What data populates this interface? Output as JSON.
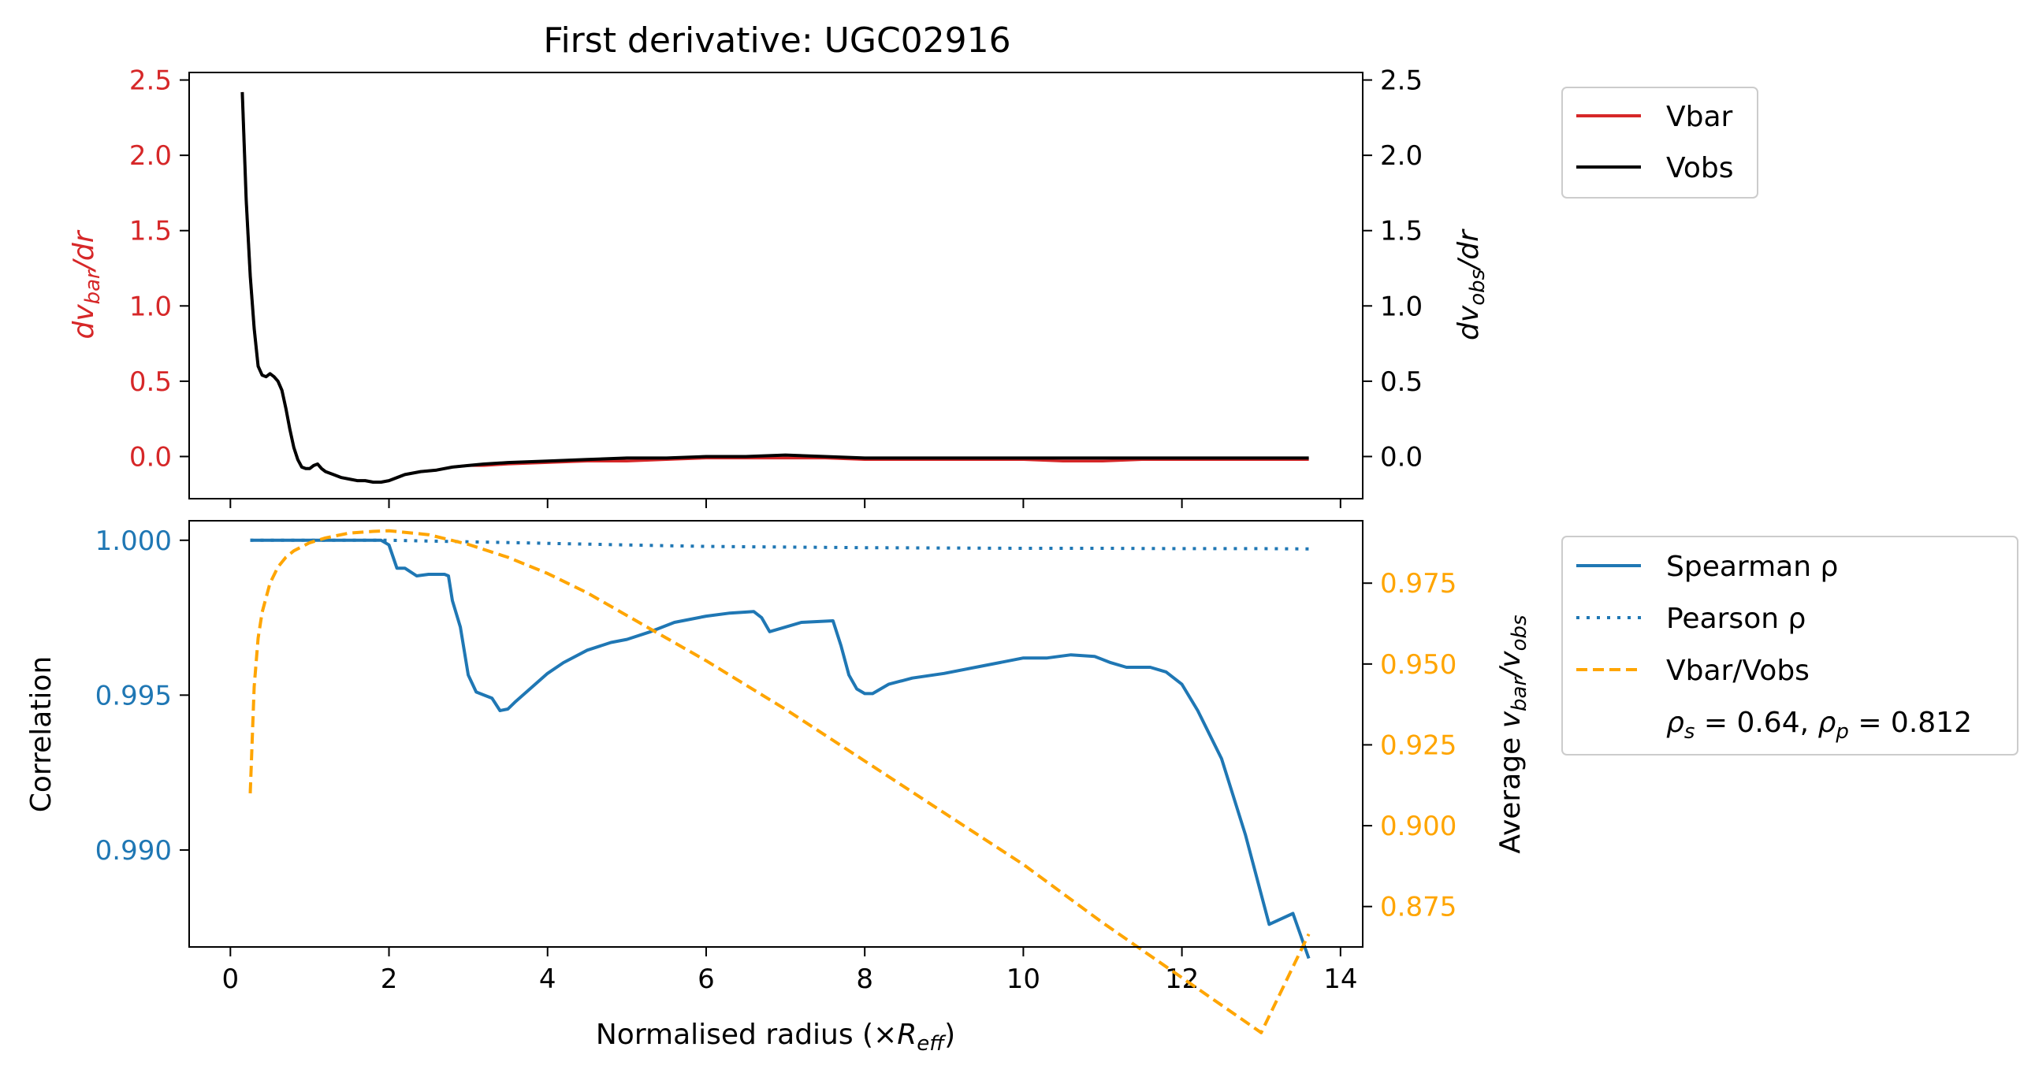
{
  "colors": {
    "vbar": "#d62728",
    "vobs": "#000000",
    "spearman": "#1f77b4",
    "pearson": "#1f77b4",
    "ratio": "#ffa500"
  },
  "chart_data": [
    {
      "type": "line",
      "title": "First derivative: UGC02916",
      "ylabel_left": "dv_bar/dr",
      "ylabel_right": "dv_obs/dr",
      "ylim": [
        -0.28,
        2.55
      ],
      "yticks": [
        0.0,
        0.5,
        1.0,
        1.5,
        2.0,
        2.5
      ],
      "xlim": [
        -0.52,
        14.28
      ],
      "legend": [
        "Vbar",
        "Vobs"
      ],
      "legend_position": "outside right, top",
      "series": [
        {
          "name": "Vbar",
          "x": [
            0.15,
            0.2,
            0.25,
            0.3,
            0.35,
            0.4,
            0.45,
            0.5,
            0.55,
            0.6,
            0.65,
            0.7,
            0.75,
            0.8,
            0.85,
            0.9,
            0.95,
            1.0,
            1.05,
            1.1,
            1.15,
            1.2,
            1.3,
            1.4,
            1.5,
            1.6,
            1.7,
            1.8,
            1.9,
            2.0,
            2.2,
            2.4,
            2.6,
            2.8,
            3.0,
            3.2,
            3.5,
            4.0,
            4.5,
            5.0,
            5.5,
            6.0,
            6.5,
            7.0,
            7.5,
            8.0,
            8.5,
            9.0,
            9.5,
            10.0,
            10.5,
            11.0,
            11.5,
            12.0,
            12.5,
            13.0,
            13.5,
            13.6
          ],
          "y": [
            2.42,
            1.7,
            1.2,
            0.85,
            0.6,
            0.54,
            0.53,
            0.55,
            0.53,
            0.5,
            0.44,
            0.32,
            0.18,
            0.06,
            -0.02,
            -0.07,
            -0.08,
            -0.08,
            -0.06,
            -0.05,
            -0.08,
            -0.1,
            -0.12,
            -0.14,
            -0.15,
            -0.16,
            -0.16,
            -0.17,
            -0.17,
            -0.16,
            -0.12,
            -0.1,
            -0.09,
            -0.07,
            -0.06,
            -0.06,
            -0.05,
            -0.04,
            -0.03,
            -0.03,
            -0.02,
            -0.01,
            -0.01,
            -0.01,
            -0.01,
            -0.02,
            -0.02,
            -0.02,
            -0.02,
            -0.02,
            -0.03,
            -0.03,
            -0.02,
            -0.02,
            -0.02,
            -0.02,
            -0.02,
            -0.02
          ]
        },
        {
          "name": "Vobs",
          "x": [
            0.15,
            0.2,
            0.25,
            0.3,
            0.35,
            0.4,
            0.45,
            0.5,
            0.55,
            0.6,
            0.65,
            0.7,
            0.75,
            0.8,
            0.85,
            0.9,
            0.95,
            1.0,
            1.05,
            1.1,
            1.15,
            1.2,
            1.3,
            1.4,
            1.5,
            1.6,
            1.7,
            1.8,
            1.9,
            2.0,
            2.2,
            2.4,
            2.6,
            2.8,
            3.0,
            3.2,
            3.5,
            4.0,
            4.5,
            5.0,
            5.5,
            6.0,
            6.5,
            7.0,
            7.5,
            8.0,
            8.5,
            9.0,
            9.5,
            10.0,
            10.5,
            11.0,
            11.5,
            12.0,
            12.5,
            13.0,
            13.5,
            13.6
          ],
          "y": [
            2.42,
            1.7,
            1.2,
            0.85,
            0.6,
            0.54,
            0.53,
            0.55,
            0.53,
            0.5,
            0.44,
            0.32,
            0.18,
            0.06,
            -0.02,
            -0.07,
            -0.08,
            -0.08,
            -0.06,
            -0.05,
            -0.08,
            -0.1,
            -0.12,
            -0.14,
            -0.15,
            -0.16,
            -0.16,
            -0.17,
            -0.17,
            -0.16,
            -0.12,
            -0.1,
            -0.09,
            -0.07,
            -0.06,
            -0.05,
            -0.04,
            -0.03,
            -0.02,
            -0.01,
            -0.01,
            0.0,
            0.0,
            0.01,
            0.0,
            -0.01,
            -0.01,
            -0.01,
            -0.01,
            -0.01,
            -0.01,
            -0.01,
            -0.01,
            -0.01,
            -0.01,
            -0.01,
            -0.01,
            -0.01
          ]
        }
      ]
    },
    {
      "type": "line",
      "xlabel": "Normalised radius (×R_eff)",
      "ylabel_left": "Correlation",
      "ylabel_right": "Average v_bar/v_obs",
      "xlim": [
        -0.52,
        14.28
      ],
      "xticks": [
        0,
        2,
        4,
        6,
        8,
        10,
        12,
        14
      ],
      "ylim_left": [
        0.98687,
        1.00063
      ],
      "yticks_left": [
        0.99,
        0.995,
        1.0
      ],
      "ylim_right": [
        0.8625,
        0.9943
      ],
      "yticks_right": [
        0.875,
        0.9,
        0.925,
        0.95,
        0.975
      ],
      "legend": [
        "Spearman ρ",
        "Pearson ρ",
        "Vbar/Vobs"
      ],
      "legend_note": "ρ_s = 0.64, ρ_p = 0.812",
      "legend_position": "outside right, top",
      "series": [
        {
          "name": "Spearman ρ",
          "axis": "left",
          "x": [
            0.25,
            0.5,
            1.0,
            1.5,
            1.9,
            2.0,
            2.1,
            2.2,
            2.35,
            2.5,
            2.6,
            2.7,
            2.75,
            2.8,
            2.9,
            3.0,
            3.1,
            3.2,
            3.3,
            3.4,
            3.5,
            3.6,
            3.8,
            4.0,
            4.2,
            4.5,
            4.8,
            5.0,
            5.3,
            5.6,
            6.0,
            6.3,
            6.6,
            6.7,
            6.8,
            7.0,
            7.2,
            7.6,
            7.7,
            7.8,
            7.9,
            8.0,
            8.1,
            8.3,
            8.6,
            9.0,
            9.5,
            10.0,
            10.3,
            10.6,
            10.9,
            11.1,
            11.3,
            11.6,
            11.8,
            12.0,
            12.2,
            12.5,
            12.8,
            13.1,
            13.4,
            13.6
          ],
          "y": [
            1.0,
            1.0,
            1.0,
            1.0,
            1.0,
            0.99985,
            0.9991,
            0.9991,
            0.99885,
            0.9989,
            0.9989,
            0.9989,
            0.99885,
            0.99805,
            0.9972,
            0.99565,
            0.9951,
            0.995,
            0.9949,
            0.9945,
            0.99455,
            0.9948,
            0.99525,
            0.9957,
            0.99605,
            0.99645,
            0.9967,
            0.9968,
            0.99705,
            0.99735,
            0.99755,
            0.99765,
            0.9977,
            0.9975,
            0.99705,
            0.9972,
            0.99735,
            0.9974,
            0.9966,
            0.99565,
            0.9952,
            0.99505,
            0.99505,
            0.99535,
            0.99555,
            0.9957,
            0.99595,
            0.9962,
            0.9962,
            0.9963,
            0.99625,
            0.99605,
            0.9959,
            0.9959,
            0.99575,
            0.99535,
            0.9945,
            0.99295,
            0.9905,
            0.9876,
            0.98795,
            0.9865
          ]
        },
        {
          "name": "Pearson ρ",
          "axis": "left",
          "x": [
            0.25,
            1.0,
            2.0,
            3.0,
            4.0,
            5.0,
            6.0,
            7.0,
            8.0,
            9.0,
            10.0,
            11.0,
            12.0,
            13.0,
            13.6
          ],
          "y": [
            1.0,
            1.0,
            1.0,
            0.99995,
            0.9999,
            0.99985,
            0.9998,
            0.99978,
            0.99976,
            0.99975,
            0.99974,
            0.99974,
            0.99973,
            0.99973,
            0.99972
          ]
        },
        {
          "name": "Vbar/Vobs",
          "axis": "right",
          "x": [
            0.25,
            0.3,
            0.35,
            0.4,
            0.5,
            0.6,
            0.7,
            0.8,
            1.0,
            1.2,
            1.5,
            1.8,
            2.0,
            2.5,
            3.0,
            3.5,
            4.0,
            4.5,
            5.0,
            5.5,
            6.0,
            7.0,
            8.0,
            9.0,
            10.0,
            11.0,
            12.0,
            13.0,
            13.6
          ],
          "y": [
            0.91,
            0.943,
            0.958,
            0.966,
            0.975,
            0.98,
            0.983,
            0.985,
            0.9875,
            0.989,
            0.9905,
            0.991,
            0.9912,
            0.99,
            0.987,
            0.983,
            0.978,
            0.972,
            0.965,
            0.958,
            0.951,
            0.936,
            0.92,
            0.904,
            0.888,
            0.87,
            0.853,
            0.836,
            0.8665
          ]
        }
      ]
    }
  ]
}
